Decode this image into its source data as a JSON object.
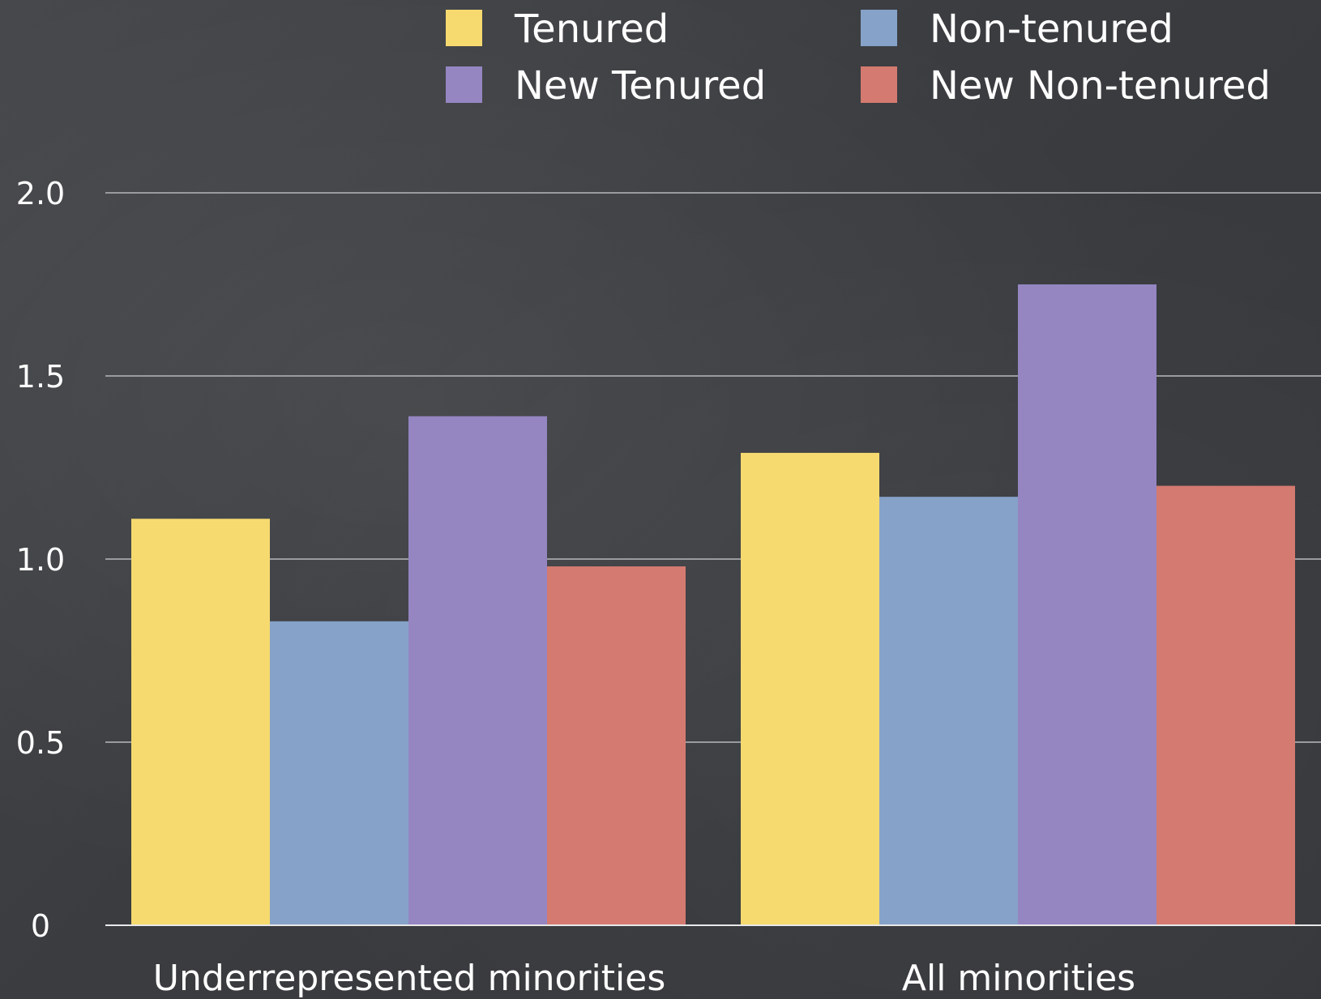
{
  "chart_data": {
    "type": "bar",
    "categories": [
      "Underrepresented minorities",
      "All minorities"
    ],
    "series": [
      {
        "name": "Tenured",
        "values": [
          1.11,
          1.29
        ],
        "color": "#f6da6f"
      },
      {
        "name": "Non-tenured",
        "values": [
          0.83,
          1.17
        ],
        "color": "#86a2c8"
      },
      {
        "name": "New Tenured",
        "values": [
          1.39,
          1.75
        ],
        "color": "#9586c2"
      },
      {
        "name": "New Non-tenured",
        "values": [
          0.98,
          1.2
        ],
        "color": "#d47a70"
      }
    ],
    "ylim": [
      0,
      2.0
    ],
    "y_ticks": [
      {
        "value": 0,
        "label": "0"
      },
      {
        "value": 0.5,
        "label": "0.5"
      },
      {
        "value": 1.0,
        "label": "1.0"
      },
      {
        "value": 1.5,
        "label": "1.5"
      },
      {
        "value": 2.0,
        "label": "2.0"
      }
    ],
    "grid": true,
    "legend_position": "top-right",
    "legend_columns": 2
  }
}
